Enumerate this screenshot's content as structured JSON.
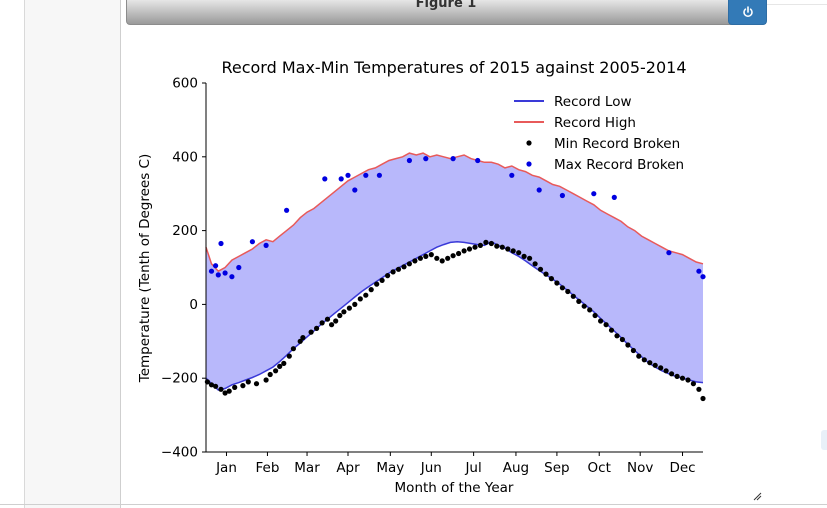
{
  "figure": {
    "title": "Figure 1"
  },
  "icons": {
    "power": "power-icon",
    "resize": "resize-handle-icon"
  },
  "chart_data": {
    "type": "line",
    "title": "Record Max-Min Temperatures of 2015 against 2005-2014",
    "xlabel": "Month of the Year",
    "ylabel": "Temperature (Tenth of Degrees C)",
    "xlim": [
      1,
      365
    ],
    "ylim": [
      -400,
      600
    ],
    "yticks": [
      -400,
      -200,
      0,
      200,
      400,
      600
    ],
    "ytick_labels": [
      "−400",
      "−200",
      "0",
      "200",
      "400",
      "600"
    ],
    "month_labels": [
      "Jan",
      "Feb",
      "Mar",
      "Apr",
      "May",
      "Jun",
      "Jul",
      "Aug",
      "Sep",
      "Oct",
      "Nov",
      "Dec"
    ],
    "month_ticks": [
      16,
      46,
      75,
      105,
      136,
      166,
      197,
      228,
      258,
      289,
      319,
      350
    ],
    "legend_position": "top-right",
    "fill_color": "#b8b8fb",
    "series": [
      {
        "name": "Record Low",
        "color": "#3a3ad8",
        "kind": "line",
        "x": [
          1,
          5,
          10,
          15,
          20,
          25,
          30,
          35,
          40,
          45,
          50,
          55,
          60,
          65,
          70,
          75,
          80,
          85,
          90,
          95,
          100,
          105,
          110,
          115,
          120,
          125,
          130,
          135,
          140,
          145,
          150,
          155,
          160,
          165,
          170,
          175,
          180,
          185,
          190,
          195,
          200,
          205,
          210,
          215,
          220,
          225,
          230,
          235,
          240,
          245,
          250,
          255,
          260,
          265,
          270,
          275,
          280,
          285,
          290,
          295,
          300,
          305,
          310,
          315,
          320,
          325,
          330,
          335,
          340,
          345,
          350,
          355,
          360,
          365
        ],
        "y": [
          -200,
          -215,
          -232,
          -228,
          -218,
          -212,
          -205,
          -198,
          -190,
          -180,
          -170,
          -155,
          -138,
          -120,
          -105,
          -88,
          -72,
          -55,
          -40,
          -25,
          -10,
          5,
          20,
          35,
          48,
          60,
          72,
          85,
          95,
          105,
          115,
          125,
          135,
          145,
          155,
          162,
          168,
          170,
          168,
          165,
          162,
          160,
          170,
          160,
          152,
          140,
          130,
          118,
          105,
          92,
          80,
          68,
          55,
          40,
          25,
          10,
          -5,
          -20,
          -38,
          -55,
          -72,
          -90,
          -108,
          -125,
          -142,
          -158,
          -170,
          -180,
          -188,
          -195,
          -200,
          -205,
          -210,
          -212
        ]
      },
      {
        "name": "Record High",
        "color": "#e85a5a",
        "kind": "line",
        "x": [
          1,
          5,
          10,
          15,
          20,
          25,
          30,
          35,
          40,
          45,
          50,
          55,
          60,
          65,
          70,
          75,
          80,
          85,
          90,
          95,
          100,
          105,
          110,
          115,
          120,
          125,
          130,
          135,
          140,
          145,
          150,
          155,
          160,
          165,
          170,
          175,
          180,
          185,
          190,
          195,
          200,
          205,
          210,
          215,
          220,
          225,
          230,
          235,
          240,
          245,
          250,
          255,
          260,
          265,
          270,
          275,
          280,
          285,
          290,
          295,
          300,
          305,
          310,
          315,
          320,
          325,
          330,
          335,
          340,
          345,
          350,
          355,
          360,
          365
        ],
        "y": [
          155,
          110,
          90,
          100,
          120,
          130,
          140,
          150,
          165,
          175,
          170,
          185,
          200,
          215,
          235,
          250,
          260,
          275,
          290,
          305,
          320,
          335,
          345,
          355,
          365,
          370,
          380,
          390,
          395,
          400,
          410,
          405,
          410,
          400,
          405,
          400,
          395,
          400,
          405,
          395,
          390,
          385,
          385,
          380,
          370,
          375,
          365,
          360,
          350,
          345,
          335,
          325,
          320,
          310,
          300,
          290,
          280,
          270,
          255,
          245,
          235,
          225,
          210,
          200,
          185,
          175,
          165,
          155,
          145,
          140,
          135,
          125,
          115,
          110
        ]
      },
      {
        "name": "Min Record Broken",
        "color": "#000000",
        "kind": "scatter",
        "x": [
          2,
          5,
          8,
          12,
          15,
          18,
          22,
          28,
          32,
          38,
          45,
          48,
          52,
          55,
          58,
          62,
          65,
          70,
          72,
          78,
          82,
          86,
          90,
          93,
          96,
          99,
          102,
          106,
          110,
          114,
          118,
          122,
          126,
          130,
          134,
          138,
          142,
          146,
          150,
          154,
          158,
          162,
          166,
          170,
          174,
          178,
          182,
          186,
          190,
          194,
          198,
          202,
          206,
          210,
          214,
          218,
          222,
          226,
          230,
          234,
          238,
          242,
          246,
          250,
          254,
          258,
          262,
          266,
          270,
          274,
          278,
          282,
          286,
          290,
          294,
          298,
          302,
          306,
          310,
          314,
          318,
          322,
          326,
          330,
          334,
          338,
          342,
          346,
          350,
          354,
          358,
          362,
          365
        ],
        "y": [
          -210,
          -218,
          -222,
          -230,
          -240,
          -235,
          -225,
          -220,
          -210,
          -215,
          -205,
          -190,
          -180,
          -168,
          -160,
          -140,
          -120,
          -100,
          -90,
          -75,
          -65,
          -50,
          -40,
          -55,
          -45,
          -30,
          -20,
          -10,
          0,
          15,
          25,
          40,
          55,
          65,
          78,
          88,
          95,
          102,
          110,
          118,
          125,
          130,
          135,
          125,
          118,
          125,
          132,
          138,
          145,
          150,
          155,
          160,
          168,
          165,
          158,
          155,
          150,
          145,
          140,
          130,
          125,
          110,
          95,
          82,
          70,
          58,
          45,
          35,
          22,
          8,
          -5,
          -15,
          -30,
          -45,
          -55,
          -70,
          -85,
          -95,
          -110,
          -125,
          -140,
          -150,
          -158,
          -165,
          -172,
          -180,
          -188,
          -195,
          -200,
          -205,
          -215,
          -230,
          -255
        ]
      },
      {
        "name": "Max Record Broken",
        "color": "#0000e0",
        "kind": "scatter",
        "x": [
          5,
          8,
          10,
          12,
          15,
          20,
          25,
          35,
          45,
          60,
          88,
          100,
          105,
          110,
          118,
          128,
          150,
          162,
          182,
          200,
          225,
          245,
          262,
          285,
          300,
          340,
          362,
          365
        ],
        "y": [
          90,
          105,
          80,
          165,
          85,
          75,
          100,
          170,
          160,
          255,
          340,
          340,
          350,
          310,
          350,
          350,
          390,
          395,
          395,
          390,
          350,
          310,
          295,
          300,
          290,
          140,
          90,
          75
        ]
      }
    ]
  }
}
